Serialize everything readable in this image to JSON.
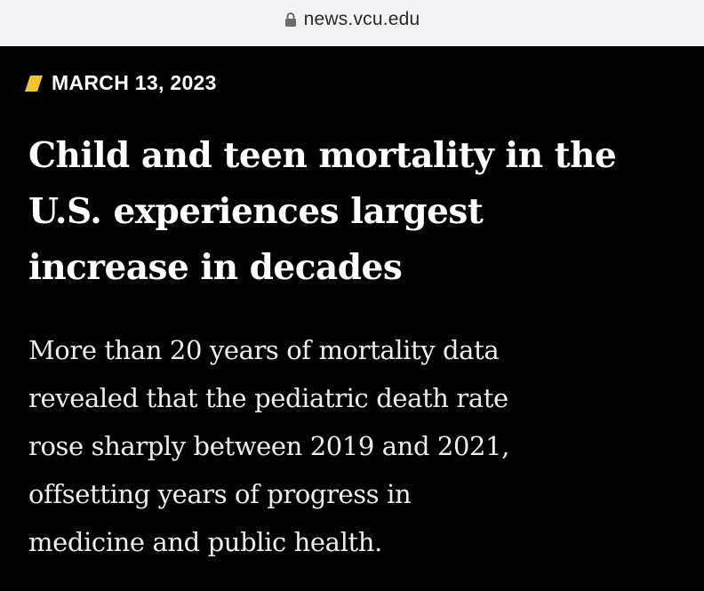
{
  "browser": {
    "url": "news.vcu.edu",
    "icons": {
      "lock": "lock-icon"
    }
  },
  "article": {
    "date": "MARCH 13, 2023",
    "accent_color": "#f2c230",
    "headline_lines": [
      "Child and teen mortality in the",
      "U.S. experiences largest",
      "increase in decades"
    ],
    "deck_lines": [
      "More than 20 years of mortality data",
      "revealed that the pediatric death rate",
      "rose sharply between 2019 and 2021,",
      "offsetting years of progress in",
      "medicine and public health."
    ]
  }
}
